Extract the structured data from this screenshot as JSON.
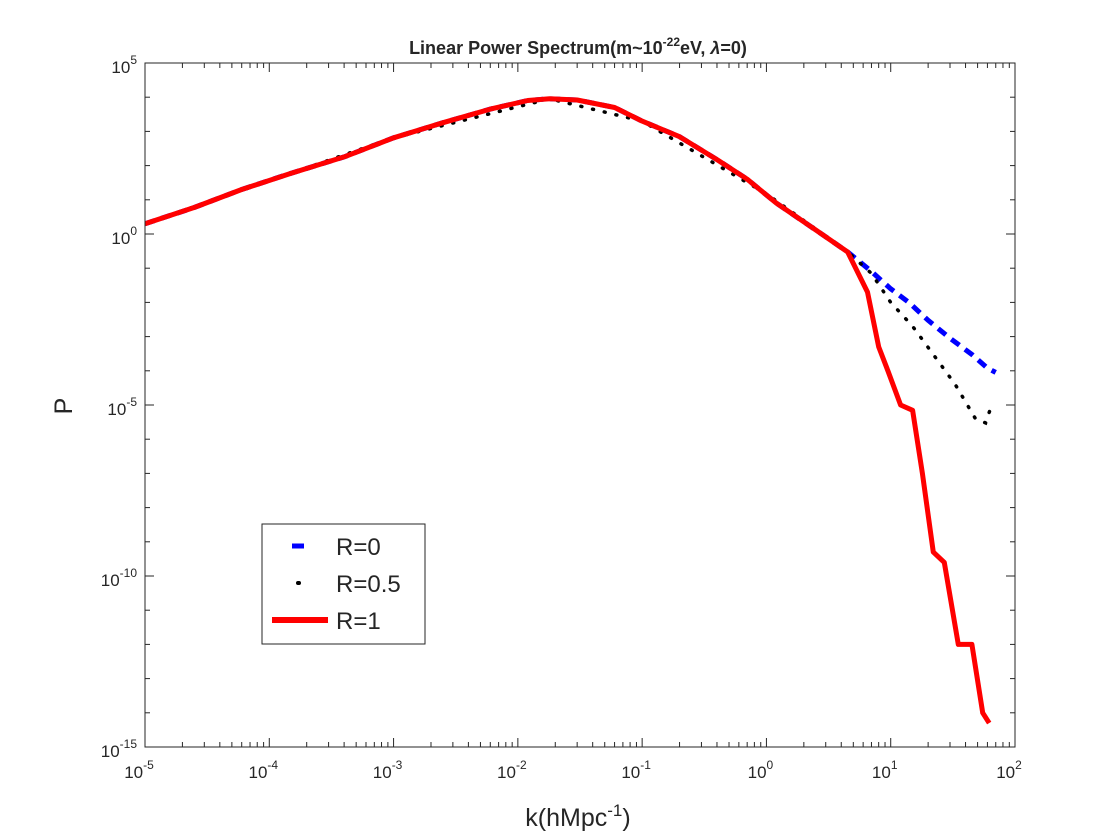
{
  "chart_data": {
    "type": "line",
    "title": {
      "prefix": "Linear Power Spectrum(m~10",
      "exp": "-22",
      "middle": "eV, ",
      "lambda": "λ",
      "suffix": "=0)"
    },
    "xlabel": {
      "base": "k(hMpc",
      "exp": "-1",
      "close": ")"
    },
    "ylabel": "P",
    "xscale": "log",
    "yscale": "log",
    "xlim": [
      1e-05,
      100
    ],
    "ylim": [
      1e-15,
      100000.0
    ],
    "grid": false,
    "legend_position": "lower-left",
    "xticks": [
      {
        "base": "10",
        "exp": "-5",
        "value": 1e-05
      },
      {
        "base": "10",
        "exp": "-4",
        "value": 0.0001
      },
      {
        "base": "10",
        "exp": "-3",
        "value": 0.001
      },
      {
        "base": "10",
        "exp": "-2",
        "value": 0.01
      },
      {
        "base": "10",
        "exp": "-1",
        "value": 0.1
      },
      {
        "base": "10",
        "exp": "0",
        "value": 1
      },
      {
        "base": "10",
        "exp": "1",
        "value": 10
      },
      {
        "base": "10",
        "exp": "2",
        "value": 100
      }
    ],
    "yticks": [
      {
        "base": "10",
        "exp": "5",
        "value": 100000.0
      },
      {
        "base": "10",
        "exp": "0",
        "value": 1
      },
      {
        "base": "10",
        "exp": "-5",
        "value": 1e-05
      },
      {
        "base": "10",
        "exp": "-10",
        "value": 1e-10
      },
      {
        "base": "10",
        "exp": "-15",
        "value": 1e-15
      }
    ],
    "series": [
      {
        "name": "R=0",
        "style": "dashed",
        "color": "#0000ff",
        "points": [
          [
            1e-05,
            2
          ],
          [
            2.5e-05,
            6
          ],
          [
            6e-05,
            20
          ],
          [
            0.00015,
            60
          ],
          [
            0.0004,
            180
          ],
          [
            0.001,
            650
          ],
          [
            0.0025,
            1800
          ],
          [
            0.006,
            4500
          ],
          [
            0.012,
            8000
          ],
          [
            0.018,
            9000
          ],
          [
            0.03,
            8300
          ],
          [
            0.06,
            5000
          ],
          [
            0.1,
            2000
          ],
          [
            0.2,
            700
          ],
          [
            0.4,
            150
          ],
          [
            0.7,
            40
          ],
          [
            1.2,
            8
          ],
          [
            2.5,
            1.3
          ],
          [
            4.5,
            0.3
          ],
          [
            7,
            0.08
          ],
          [
            10,
            0.025
          ],
          [
            14,
            0.01
          ],
          [
            20,
            0.003
          ],
          [
            30,
            0.0009
          ],
          [
            45,
            0.0003
          ],
          [
            60,
            0.00012
          ],
          [
            70,
            9e-05
          ]
        ]
      },
      {
        "name": "R=0.5",
        "style": "dotted",
        "color": "#000000",
        "points": [
          [
            1e-05,
            2
          ],
          [
            0.001,
            650
          ],
          [
            0.018,
            9000
          ],
          [
            0.1,
            2000
          ],
          [
            1,
            15
          ],
          [
            4.5,
            0.3
          ],
          [
            7,
            0.07
          ],
          [
            10,
            0.01
          ],
          [
            15,
            0.002
          ],
          [
            22,
            0.0003
          ],
          [
            33,
            4e-05
          ],
          [
            48,
            4e-06
          ],
          [
            58,
            3e-06
          ],
          [
            65,
            1e-05
          ]
        ]
      },
      {
        "name": "R=1",
        "style": "solid",
        "color": "#ff0000",
        "points": [
          [
            1e-05,
            2
          ],
          [
            2.5e-05,
            6
          ],
          [
            6e-05,
            20
          ],
          [
            0.00015,
            60
          ],
          [
            0.0004,
            180
          ],
          [
            0.001,
            650
          ],
          [
            0.0025,
            1800
          ],
          [
            0.006,
            4500
          ],
          [
            0.012,
            8000
          ],
          [
            0.018,
            9000
          ],
          [
            0.03,
            8300
          ],
          [
            0.06,
            5000
          ],
          [
            0.1,
            2000
          ],
          [
            0.2,
            700
          ],
          [
            0.4,
            150
          ],
          [
            0.7,
            40
          ],
          [
            1.2,
            8
          ],
          [
            2.5,
            1.3
          ],
          [
            4.5,
            0.3
          ],
          [
            6.5,
            0.02
          ],
          [
            8,
            0.0005
          ],
          [
            9.5,
            0.0001
          ],
          [
            12,
            1e-05
          ],
          [
            15,
            7e-06
          ],
          [
            18,
            1e-07
          ],
          [
            22,
            5e-10
          ],
          [
            27,
            2.5e-10
          ],
          [
            35,
            1e-12
          ],
          [
            45,
            1e-12
          ],
          [
            55,
            1e-14
          ],
          [
            62,
            5e-15
          ]
        ]
      }
    ]
  }
}
